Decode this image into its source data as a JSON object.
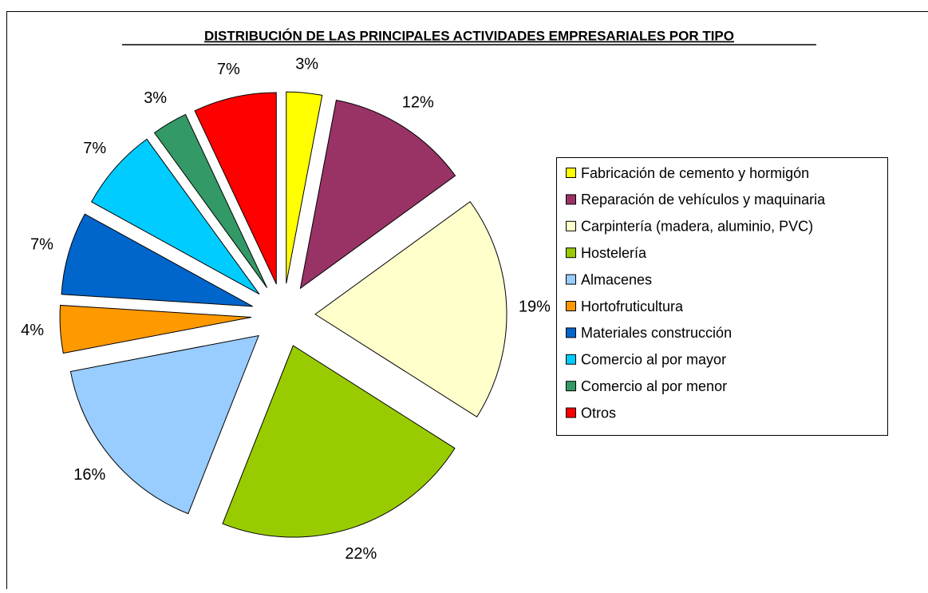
{
  "chart_data": {
    "type": "pie",
    "title": "DISTRIBUCIÓN DE LAS PRINCIPALES ACTIVIDADES EMPRESARIALES POR TIPO",
    "categories": [
      "Fabricación de cemento y hormigón",
      "Reparación de vehículos y maquinaria",
      "Carpintería (madera, aluminio, PVC)",
      "Hostelería",
      "Almacenes",
      "Hortofruticultura",
      "Materiales construcción",
      "Comercio al por mayor",
      "Comercio al por menor",
      "Otros"
    ],
    "values": [
      3,
      12,
      19,
      22,
      16,
      4,
      7,
      7,
      3,
      7
    ],
    "value_labels": [
      "3%",
      "12%",
      "19%",
      "22%",
      "16%",
      "4%",
      "7%",
      "7%",
      "3%",
      "7%"
    ],
    "colors": [
      "#ffff00",
      "#993366",
      "#ffffcc",
      "#99cc00",
      "#99ccff",
      "#ff9900",
      "#0066cc",
      "#00ccff",
      "#339966",
      "#ff0000"
    ],
    "legend": "right"
  }
}
